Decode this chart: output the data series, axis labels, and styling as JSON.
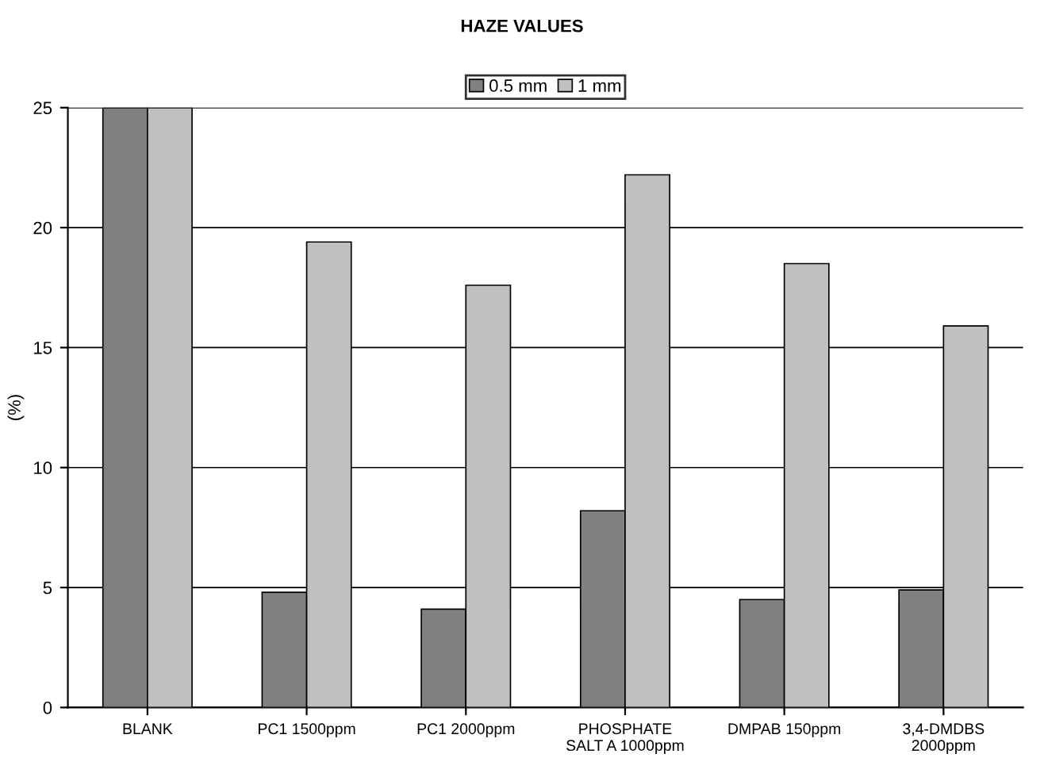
{
  "chart_data": {
    "type": "bar",
    "title": "HAZE VALUES",
    "ylabel": "(%)",
    "categories": [
      "BLANK",
      "PC1 1500ppm",
      "PC1 2000ppm",
      "PHOSPHATE\nSALT A 1000ppm",
      "DMPAB 150ppm",
      "3,4-DMDBS\n2000ppm"
    ],
    "series": [
      {
        "name": "0.5 mm",
        "color": "#808080",
        "values": [
          25,
          4.8,
          4.1,
          8.2,
          4.5,
          4.9
        ]
      },
      {
        "name": "1 mm",
        "color": "#c0c0c0",
        "values": [
          25,
          19.4,
          17.6,
          22.2,
          18.5,
          15.9
        ]
      }
    ],
    "ylim": [
      0,
      25
    ],
    "yticks": [
      0,
      5,
      10,
      15,
      20,
      25
    ],
    "grid": "y",
    "legend": "top"
  }
}
